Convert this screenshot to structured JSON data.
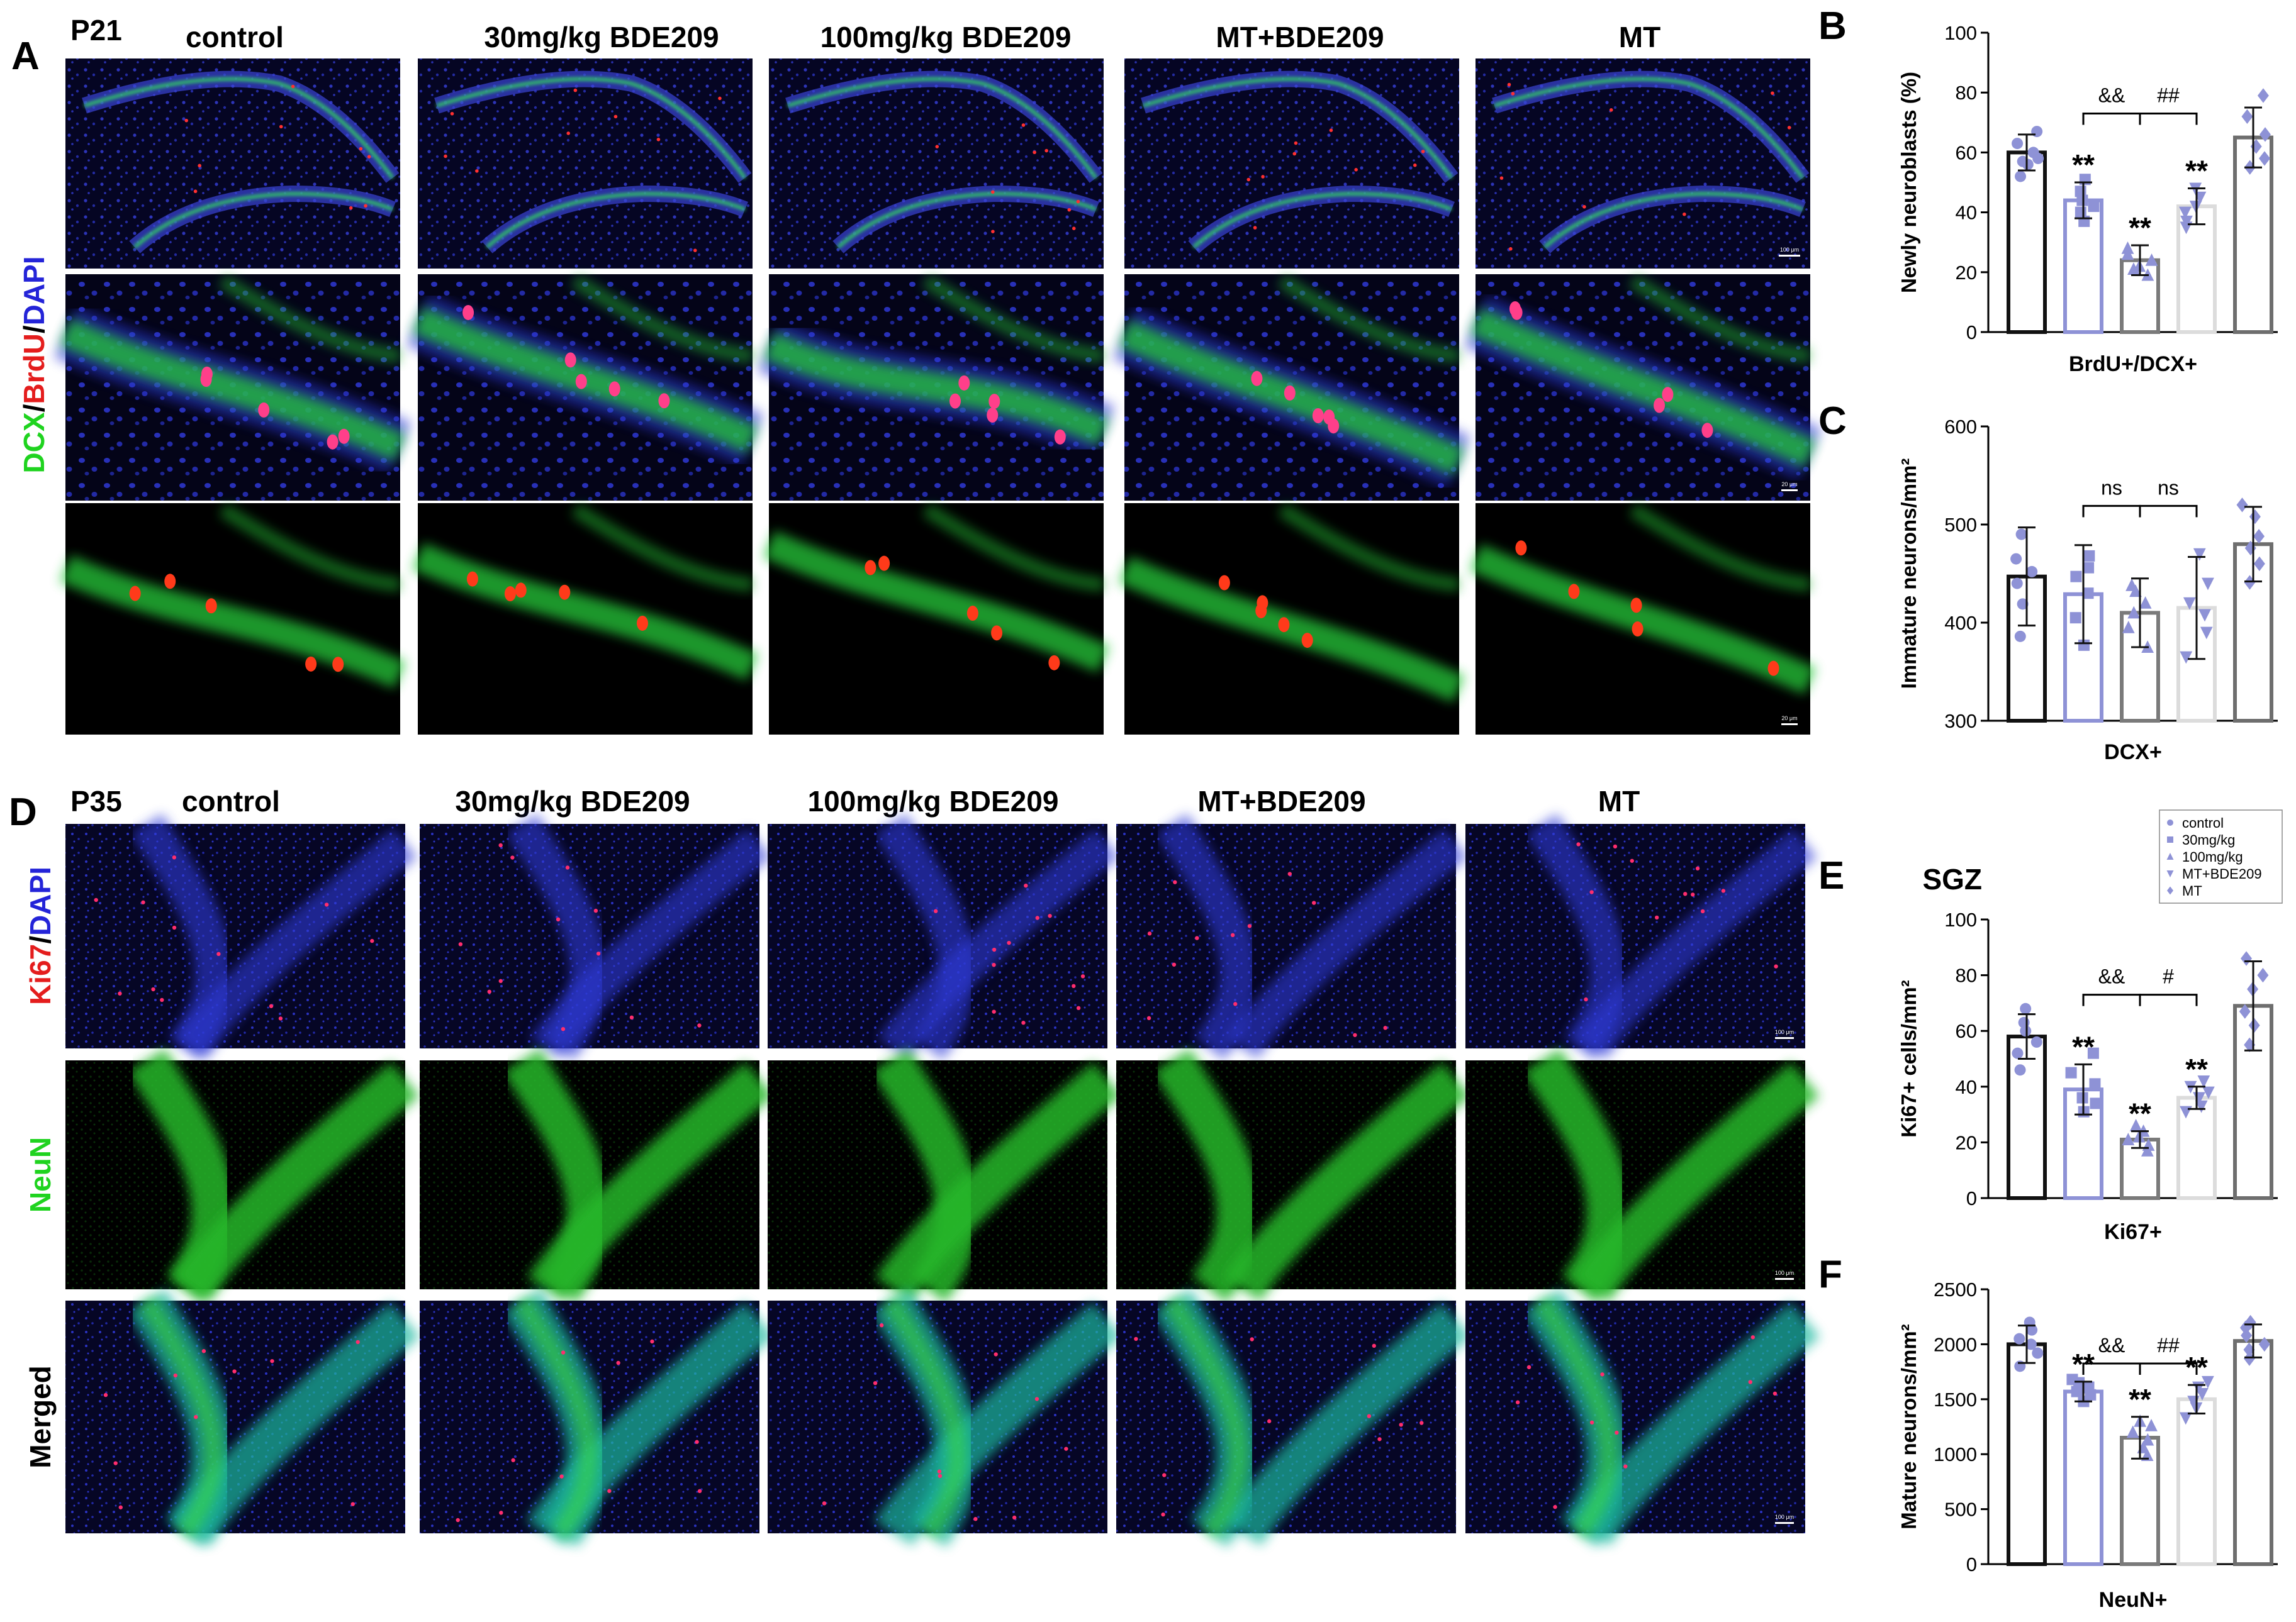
{
  "figure": {
    "panel_letters": [
      "A",
      "B",
      "C",
      "D",
      "E",
      "F"
    ],
    "panel_a": {
      "age": "P21",
      "groups": [
        "control",
        "30mg/kg BDE209",
        "100mg/kg BDE209",
        "MT+BDE209",
        "MT"
      ],
      "stain_label": [
        {
          "text": "DCX",
          "color": "#1fd31f"
        },
        {
          "text": "/",
          "color": "#000000"
        },
        {
          "text": "BrdU",
          "color": "#e41d1d"
        },
        {
          "text": "/",
          "color": "#000000"
        },
        {
          "text": "DAPI",
          "color": "#2424d8"
        }
      ],
      "scale_bars": [
        "100 μm",
        "20 μm",
        "20 μm"
      ]
    },
    "panel_d": {
      "age": "P35",
      "groups": [
        "control",
        "30mg/kg BDE209",
        "100mg/kg BDE209",
        "MT+BDE209",
        "MT"
      ],
      "row_labels": [
        [
          {
            "text": "Ki67",
            "color": "#e41d1d"
          },
          {
            "text": "/",
            "color": "#000000"
          },
          {
            "text": "DAPI",
            "color": "#2424d8"
          }
        ],
        [
          {
            "text": "NeuN",
            "color": "#1fd31f"
          }
        ],
        [
          {
            "text": "Merged",
            "color": "#000000"
          }
        ]
      ],
      "scale_bars": [
        "100 μm",
        "100 μm",
        "100 μm"
      ]
    }
  },
  "legend": {
    "entries": [
      {
        "label": "control",
        "marker": "circle"
      },
      {
        "label": "30mg/kg",
        "marker": "square"
      },
      {
        "label": "100mg/kg",
        "marker": "triangle-up"
      },
      {
        "label": "MT+BDE209",
        "marker": "triangle-down"
      },
      {
        "label": "MT",
        "marker": "diamond"
      }
    ]
  },
  "colors": {
    "marker": "#8e92d6",
    "bar_outlines": [
      "#111111",
      "#8e92d6",
      "#7a7a7a",
      "#dcdcdc",
      "#6e6e6e"
    ],
    "background": "#ffffff"
  },
  "chart_data": [
    {
      "panel": "B",
      "type": "bar",
      "categories": [
        "control",
        "30mg/kg",
        "100mg/kg",
        "MT+BDE209",
        "MT"
      ],
      "values": [
        60,
        44,
        24,
        42,
        65
      ],
      "errors": [
        6,
        6,
        5,
        6,
        10
      ],
      "points": [
        [
          52,
          56,
          57,
          58,
          60,
          63,
          67
        ],
        [
          37,
          40,
          42,
          44,
          47,
          51
        ],
        [
          19,
          21,
          22,
          24,
          26,
          28
        ],
        [
          35,
          37,
          40,
          42,
          45,
          48
        ],
        [
          55,
          58,
          62,
          66,
          72,
          79
        ]
      ],
      "ylim": [
        0,
        100
      ],
      "yticks": [
        0,
        20,
        40,
        60,
        80,
        100
      ],
      "ylabel": "Newly neuroblasts (%)",
      "xlabel": "BrdU+/DCX+",
      "bar_significance": [
        "",
        "**",
        "**",
        "**",
        ""
      ],
      "brackets": [
        {
          "label": "&&",
          "from": 1,
          "to": 2
        },
        {
          "label": "##",
          "from": 2,
          "to": 3
        }
      ]
    },
    {
      "panel": "C",
      "type": "bar",
      "categories": [
        "control",
        "30mg/kg",
        "100mg/kg",
        "MT+BDE209",
        "MT"
      ],
      "values": [
        447,
        429,
        410,
        415,
        480
      ],
      "errors": [
        50,
        50,
        35,
        52,
        38
      ],
      "points": [
        [
          386,
          419,
          440,
          452,
          465,
          490
        ],
        [
          377,
          405,
          430,
          447,
          456,
          468
        ],
        [
          375,
          395,
          410,
          420,
          432,
          438
        ],
        [
          365,
          390,
          408,
          420,
          440,
          470
        ],
        [
          441,
          460,
          476,
          488,
          508,
          520
        ]
      ],
      "ylim": [
        300,
        600
      ],
      "yticks": [
        300,
        400,
        500,
        600
      ],
      "ylabel": "Immature neurons/mm²",
      "xlabel": "DCX+",
      "bar_significance": [
        "",
        "",
        "",
        "",
        ""
      ],
      "brackets": [
        {
          "label": "ns",
          "from": 1,
          "to": 2
        },
        {
          "label": "ns",
          "from": 2,
          "to": 3
        }
      ]
    },
    {
      "panel": "E",
      "type": "bar",
      "title": "SGZ",
      "categories": [
        "control",
        "30mg/kg",
        "100mg/kg",
        "MT+BDE209",
        "MT"
      ],
      "values": [
        58,
        39,
        21,
        36,
        69
      ],
      "errors": [
        8,
        9,
        3,
        4,
        16
      ],
      "points": [
        [
          46,
          52,
          56,
          60,
          63,
          68
        ],
        [
          31,
          34,
          36,
          41,
          45,
          52
        ],
        [
          17,
          19,
          21,
          22,
          24,
          26
        ],
        [
          31,
          33,
          36,
          38,
          40,
          42
        ],
        [
          55,
          62,
          67,
          75,
          80,
          86
        ]
      ],
      "ylim": [
        0,
        100
      ],
      "yticks": [
        0,
        20,
        40,
        60,
        80,
        100
      ],
      "ylabel": "Ki67+ cells/mm²",
      "xlabel": "Ki67+",
      "bar_significance": [
        "",
        "**",
        "**",
        "**",
        ""
      ],
      "brackets": [
        {
          "label": "&&",
          "from": 1,
          "to": 2
        },
        {
          "label": "#",
          "from": 2,
          "to": 3
        }
      ]
    },
    {
      "panel": "F",
      "type": "bar",
      "categories": [
        "control",
        "30mg/kg",
        "100mg/kg",
        "MT+BDE209",
        "MT"
      ],
      "values": [
        2000,
        1570,
        1150,
        1500,
        2030
      ],
      "errors": [
        170,
        90,
        190,
        130,
        150
      ],
      "points": [
        [
          1800,
          1920,
          2000,
          2050,
          2130,
          2200
        ],
        [
          1480,
          1540,
          1570,
          1610,
          1650,
          1680
        ],
        [
          990,
          1060,
          1130,
          1200,
          1260,
          1300
        ],
        [
          1330,
          1420,
          1480,
          1550,
          1610,
          1660
        ],
        [
          1870,
          1950,
          2000,
          2080,
          2150,
          2200
        ]
      ],
      "ylim": [
        0,
        2500
      ],
      "yticks": [
        0,
        500,
        1000,
        1500,
        2000,
        2500
      ],
      "ylabel": "Mature neurons/mm²",
      "xlabel": "NeuN+",
      "bar_significance": [
        "",
        "**",
        "**",
        "**",
        ""
      ],
      "brackets": [
        {
          "label": "&&",
          "from": 1,
          "to": 2
        },
        {
          "label": "##",
          "from": 2,
          "to": 3
        }
      ]
    }
  ]
}
